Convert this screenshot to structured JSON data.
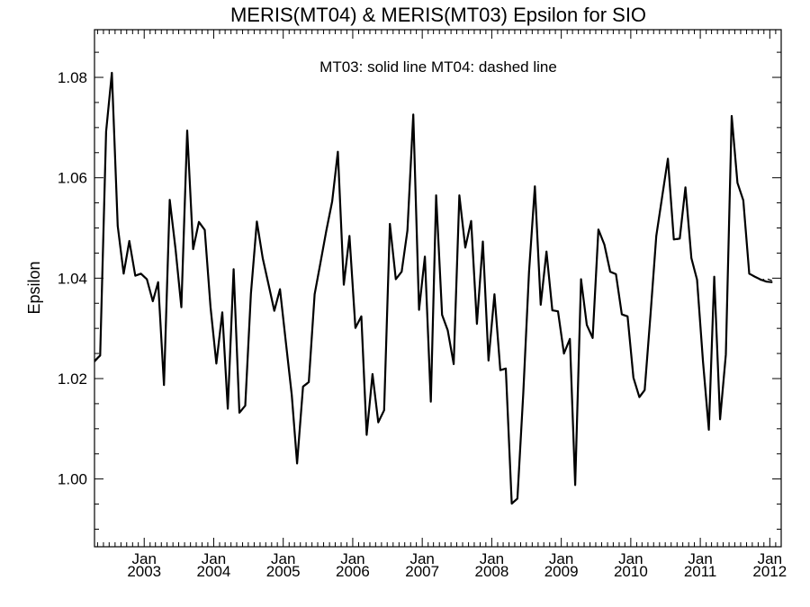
{
  "chart_data": {
    "type": "line",
    "title": "MERIS(MT04) & MERIS(MT03)  Epsilon for SIO",
    "annotation": "MT03: solid line   MT04: dashed line",
    "ylabel": "Epsilon",
    "xlabel": "",
    "ylim": [
      0.9865,
      1.0895
    ],
    "xlim": [
      "2002-04-15",
      "2012-03-01"
    ],
    "yticks": [
      1.0,
      1.02,
      1.04,
      1.06,
      1.08
    ],
    "ytick_labels": [
      "1.00",
      "1.02",
      "1.04",
      "1.06",
      "1.08"
    ],
    "xticks": [
      {
        "date": "2003-01-01",
        "month": "Jan",
        "year": "2003"
      },
      {
        "date": "2004-01-01",
        "month": "Jan",
        "year": "2004"
      },
      {
        "date": "2005-01-01",
        "month": "Jan",
        "year": "2005"
      },
      {
        "date": "2006-01-01",
        "month": "Jan",
        "year": "2006"
      },
      {
        "date": "2007-01-01",
        "month": "Jan",
        "year": "2007"
      },
      {
        "date": "2008-01-01",
        "month": "Jan",
        "year": "2008"
      },
      {
        "date": "2009-01-01",
        "month": "Jan",
        "year": "2009"
      },
      {
        "date": "2010-01-01",
        "month": "Jan",
        "year": "2010"
      },
      {
        "date": "2011-01-01",
        "month": "Jan",
        "year": "2011"
      },
      {
        "date": "2012-01-01",
        "month": "Jan",
        "year": "2012"
      }
    ],
    "grid": false,
    "series": [
      {
        "name": "MT03",
        "style": "solid",
        "color": "#000000",
        "points": [
          [
            "2002-04-15",
            1.0235
          ],
          [
            "2002-05-15",
            1.0246
          ],
          [
            "2002-06-15",
            1.0692
          ],
          [
            "2002-07-15",
            1.0809
          ],
          [
            "2002-08-15",
            1.0504
          ],
          [
            "2002-09-15",
            1.0409
          ],
          [
            "2002-10-15",
            1.0474
          ],
          [
            "2002-11-15",
            1.0405
          ],
          [
            "2002-12-15",
            1.0409
          ],
          [
            "2003-01-15",
            1.0398
          ],
          [
            "2003-02-15",
            1.0354
          ],
          [
            "2003-03-15",
            1.0392
          ],
          [
            "2003-04-15",
            1.0187
          ],
          [
            "2003-05-15",
            1.0556
          ],
          [
            "2003-06-15",
            1.0457
          ],
          [
            "2003-07-15",
            1.0342
          ],
          [
            "2003-08-15",
            1.0694
          ],
          [
            "2003-09-15",
            1.0458
          ],
          [
            "2003-10-15",
            1.0512
          ],
          [
            "2003-11-15",
            1.0496
          ],
          [
            "2003-12-15",
            1.0343
          ],
          [
            "2004-01-15",
            1.023
          ],
          [
            "2004-02-15",
            1.0332
          ],
          [
            "2004-03-15",
            1.014
          ],
          [
            "2004-04-15",
            1.0418
          ],
          [
            "2004-05-15",
            1.0132
          ],
          [
            "2004-06-15",
            1.0146
          ],
          [
            "2004-07-15",
            1.0369
          ],
          [
            "2004-08-15",
            1.0513
          ],
          [
            "2004-09-15",
            1.044
          ],
          [
            "2004-10-15",
            1.0389
          ],
          [
            "2004-11-15",
            1.0335
          ],
          [
            "2004-12-15",
            1.0378
          ],
          [
            "2005-01-15",
            1.0271
          ],
          [
            "2005-02-15",
            1.0167
          ],
          [
            "2005-03-15",
            1.0031
          ],
          [
            "2005-04-15",
            1.0184
          ],
          [
            "2005-05-15",
            1.0193
          ],
          [
            "2005-06-15",
            1.0368
          ],
          [
            "2005-07-15",
            1.043
          ],
          [
            "2005-08-15",
            1.0494
          ],
          [
            "2005-09-15",
            1.0553
          ],
          [
            "2005-10-15",
            1.0652
          ],
          [
            "2005-11-15",
            1.0387
          ],
          [
            "2005-12-15",
            1.0484
          ],
          [
            "2006-01-15",
            1.0301
          ],
          [
            "2006-02-15",
            1.0324
          ],
          [
            "2006-03-15",
            1.0088
          ],
          [
            "2006-04-15",
            1.0209
          ],
          [
            "2006-05-15",
            1.0113
          ],
          [
            "2006-06-15",
            1.0137
          ],
          [
            "2006-07-15",
            1.0508
          ],
          [
            "2006-08-15",
            1.0398
          ],
          [
            "2006-09-15",
            1.0413
          ],
          [
            "2006-10-15",
            1.0495
          ],
          [
            "2006-11-15",
            1.0726
          ],
          [
            "2006-12-15",
            1.0337
          ],
          [
            "2007-01-15",
            1.0443
          ],
          [
            "2007-02-15",
            1.0154
          ],
          [
            "2007-03-15",
            1.0565
          ],
          [
            "2007-04-15",
            1.0327
          ],
          [
            "2007-05-15",
            1.0296
          ],
          [
            "2007-06-15",
            1.0229
          ],
          [
            "2007-07-15",
            1.0565
          ],
          [
            "2007-08-15",
            1.0461
          ],
          [
            "2007-09-15",
            1.0514
          ],
          [
            "2007-10-15",
            1.0309
          ],
          [
            "2007-11-15",
            1.0473
          ],
          [
            "2007-12-15",
            1.0236
          ],
          [
            "2008-01-15",
            1.0368
          ],
          [
            "2008-02-15",
            1.0217
          ],
          [
            "2008-03-15",
            1.022
          ],
          [
            "2008-04-15",
            0.9951
          ],
          [
            "2008-05-15",
            0.9961
          ],
          [
            "2008-06-15",
            1.017
          ],
          [
            "2008-07-15",
            1.0412
          ],
          [
            "2008-08-15",
            1.0583
          ],
          [
            "2008-09-15",
            1.0347
          ],
          [
            "2008-10-15",
            1.0453
          ],
          [
            "2008-11-15",
            1.0336
          ],
          [
            "2008-12-15",
            1.0334
          ],
          [
            "2009-01-15",
            1.025
          ],
          [
            "2009-02-15",
            1.0279
          ],
          [
            "2009-03-15",
            0.9988
          ],
          [
            "2009-04-15",
            1.0398
          ],
          [
            "2009-05-15",
            1.0307
          ],
          [
            "2009-06-15",
            1.0281
          ],
          [
            "2009-07-15",
            1.0497
          ],
          [
            "2009-08-15",
            1.0467
          ],
          [
            "2009-09-15",
            1.0413
          ],
          [
            "2009-10-15",
            1.0408
          ],
          [
            "2009-11-15",
            1.0328
          ],
          [
            "2009-12-15",
            1.0324
          ],
          [
            "2010-01-15",
            1.0202
          ],
          [
            "2010-02-15",
            1.0163
          ],
          [
            "2010-03-15",
            1.0177
          ],
          [
            "2010-04-15",
            1.033
          ],
          [
            "2010-05-15",
            1.0484
          ],
          [
            "2010-06-15",
            1.0563
          ],
          [
            "2010-07-15",
            1.0638
          ],
          [
            "2010-08-15",
            1.0477
          ],
          [
            "2010-09-15",
            1.0479
          ],
          [
            "2010-10-15",
            1.0581
          ],
          [
            "2010-11-15",
            1.044
          ],
          [
            "2010-12-15",
            1.0397
          ],
          [
            "2011-01-15",
            1.0234
          ],
          [
            "2011-02-15",
            1.0098
          ],
          [
            "2011-03-15",
            1.0403
          ],
          [
            "2011-04-15",
            1.0119
          ],
          [
            "2011-05-15",
            1.0248
          ],
          [
            "2011-06-15",
            1.0723
          ],
          [
            "2011-07-15",
            1.059
          ],
          [
            "2011-08-15",
            1.0555
          ],
          [
            "2011-09-15",
            1.0409
          ],
          [
            "2011-10-15",
            1.0403
          ],
          [
            "2011-11-15",
            1.0397
          ],
          [
            "2011-12-15",
            1.0393
          ],
          [
            "2012-01-15",
            1.0392
          ]
        ]
      },
      {
        "name": "MT04",
        "style": "dashed",
        "color": "#000000",
        "points": [
          [
            "2002-04-15",
            1.0233
          ],
          [
            "2002-05-15",
            1.0245
          ],
          [
            "2002-06-15",
            1.069
          ],
          [
            "2002-07-15",
            1.0807
          ],
          [
            "2002-08-15",
            1.0502
          ],
          [
            "2002-09-15",
            1.0408
          ],
          [
            "2002-10-15",
            1.0472
          ],
          [
            "2002-11-15",
            1.0404
          ],
          [
            "2002-12-15",
            1.0408
          ],
          [
            "2003-01-15",
            1.0397
          ],
          [
            "2003-02-15",
            1.0353
          ],
          [
            "2003-03-15",
            1.0391
          ],
          [
            "2003-04-15",
            1.0186
          ],
          [
            "2003-05-15",
            1.0554
          ],
          [
            "2003-06-15",
            1.0456
          ],
          [
            "2003-07-15",
            1.0341
          ],
          [
            "2003-08-15",
            1.0692
          ],
          [
            "2003-09-15",
            1.0457
          ],
          [
            "2003-10-15",
            1.0511
          ],
          [
            "2003-11-15",
            1.0495
          ],
          [
            "2003-12-15",
            1.0342
          ],
          [
            "2004-01-15",
            1.0229
          ],
          [
            "2004-02-15",
            1.0331
          ],
          [
            "2004-03-15",
            1.0139
          ],
          [
            "2004-04-15",
            1.0417
          ],
          [
            "2004-05-15",
            1.0131
          ],
          [
            "2004-06-15",
            1.0145
          ],
          [
            "2004-07-15",
            1.0368
          ],
          [
            "2004-08-15",
            1.0511
          ],
          [
            "2004-09-15",
            1.0439
          ],
          [
            "2004-10-15",
            1.0388
          ],
          [
            "2004-11-15",
            1.0334
          ],
          [
            "2004-12-15",
            1.0377
          ],
          [
            "2005-01-15",
            1.027
          ],
          [
            "2005-02-15",
            1.0166
          ],
          [
            "2005-03-15",
            1.003
          ],
          [
            "2005-04-15",
            1.0183
          ],
          [
            "2005-05-15",
            1.0192
          ],
          [
            "2005-06-15",
            1.0367
          ],
          [
            "2005-07-15",
            1.0429
          ],
          [
            "2005-08-15",
            1.0493
          ],
          [
            "2005-09-15",
            1.0552
          ],
          [
            "2005-10-15",
            1.065
          ],
          [
            "2005-11-15",
            1.0386
          ],
          [
            "2005-12-15",
            1.0483
          ],
          [
            "2006-01-15",
            1.03
          ],
          [
            "2006-02-15",
            1.0323
          ],
          [
            "2006-03-15",
            1.0087
          ],
          [
            "2006-04-15",
            1.0208
          ],
          [
            "2006-05-15",
            1.0112
          ],
          [
            "2006-06-15",
            1.0136
          ],
          [
            "2006-07-15",
            1.0507
          ],
          [
            "2006-08-15",
            1.0397
          ],
          [
            "2006-09-15",
            1.0412
          ],
          [
            "2006-10-15",
            1.0494
          ],
          [
            "2006-11-15",
            1.0724
          ],
          [
            "2006-12-15",
            1.0336
          ],
          [
            "2007-01-15",
            1.0442
          ],
          [
            "2007-02-15",
            1.0153
          ],
          [
            "2007-03-15",
            1.0563
          ],
          [
            "2007-04-15",
            1.0326
          ],
          [
            "2007-05-15",
            1.0295
          ],
          [
            "2007-06-15",
            1.0228
          ],
          [
            "2007-07-15",
            1.0563
          ],
          [
            "2007-08-15",
            1.046
          ],
          [
            "2007-09-15",
            1.0513
          ],
          [
            "2007-10-15",
            1.0308
          ],
          [
            "2007-11-15",
            1.0472
          ],
          [
            "2007-12-15",
            1.0235
          ],
          [
            "2008-01-15",
            1.0367
          ],
          [
            "2008-02-15",
            1.0216
          ],
          [
            "2008-03-15",
            1.0219
          ],
          [
            "2008-04-15",
            0.995
          ],
          [
            "2008-05-15",
            0.996
          ],
          [
            "2008-06-15",
            1.0169
          ],
          [
            "2008-07-15",
            1.0411
          ],
          [
            "2008-08-15",
            1.0581
          ],
          [
            "2008-09-15",
            1.0346
          ],
          [
            "2008-10-15",
            1.0452
          ],
          [
            "2008-11-15",
            1.0335
          ],
          [
            "2008-12-15",
            1.0333
          ],
          [
            "2009-01-15",
            1.0249
          ],
          [
            "2009-02-15",
            1.0278
          ],
          [
            "2009-03-15",
            0.9987
          ],
          [
            "2009-04-15",
            1.0397
          ],
          [
            "2009-05-15",
            1.0306
          ],
          [
            "2009-06-15",
            1.028
          ],
          [
            "2009-07-15",
            1.0496
          ],
          [
            "2009-08-15",
            1.0466
          ],
          [
            "2009-09-15",
            1.0412
          ],
          [
            "2009-10-15",
            1.0407
          ],
          [
            "2009-11-15",
            1.0327
          ],
          [
            "2009-12-15",
            1.0323
          ],
          [
            "2010-01-15",
            1.0201
          ],
          [
            "2010-02-15",
            1.0162
          ],
          [
            "2010-03-15",
            1.0176
          ],
          [
            "2010-04-15",
            1.0329
          ],
          [
            "2010-05-15",
            1.0483
          ],
          [
            "2010-06-15",
            1.0562
          ],
          [
            "2010-07-15",
            1.0636
          ],
          [
            "2010-08-15",
            1.0476
          ],
          [
            "2010-09-15",
            1.0478
          ],
          [
            "2010-10-15",
            1.058
          ],
          [
            "2010-11-15",
            1.0439
          ],
          [
            "2010-12-15",
            1.0396
          ],
          [
            "2011-01-15",
            1.0233
          ],
          [
            "2011-02-15",
            1.0097
          ],
          [
            "2011-03-15",
            1.0402
          ],
          [
            "2011-04-15",
            1.0118
          ],
          [
            "2011-05-15",
            1.0247
          ],
          [
            "2011-06-15",
            1.0721
          ],
          [
            "2011-07-15",
            1.0589
          ],
          [
            "2011-08-15",
            1.0554
          ],
          [
            "2011-09-15",
            1.0408
          ],
          [
            "2011-10-15",
            1.0402
          ],
          [
            "2011-11-15",
            1.0396
          ],
          [
            "2011-12-15",
            1.0399
          ],
          [
            "2012-01-15",
            1.0395
          ]
        ]
      }
    ]
  }
}
